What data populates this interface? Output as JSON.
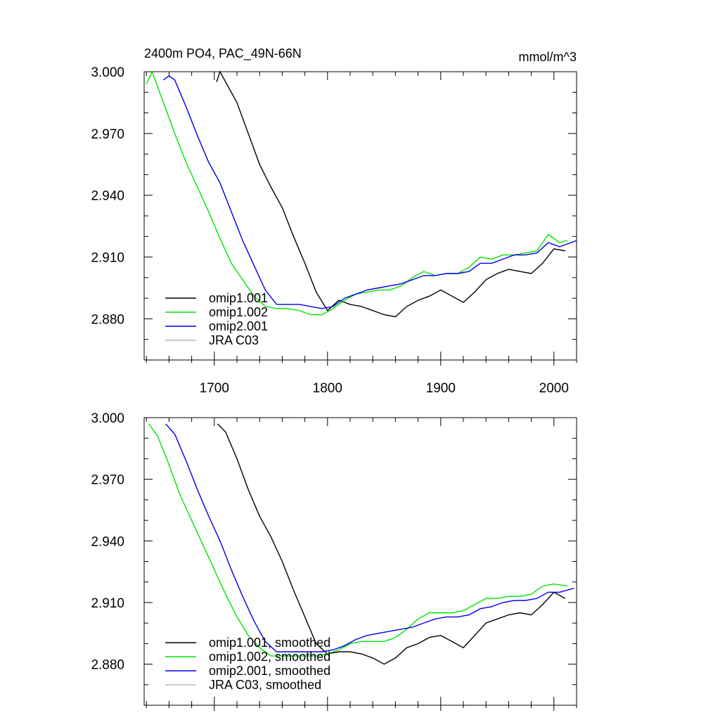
{
  "title": "2400m PO4, PAC_49N-66N",
  "units": "mmol/m^3",
  "chart_data": [
    {
      "type": "line",
      "title": "2400m PO4, PAC_49N-66N",
      "units_label": "mmol/m^3",
      "xlim": [
        1638,
        2020
      ],
      "ylim": [
        2.86,
        3.0
      ],
      "xticks": [
        1700,
        1800,
        1900,
        2000
      ],
      "xtick_labels": [
        "1700",
        "1800",
        "1900",
        "2000"
      ],
      "yticks": [
        2.88,
        2.91,
        2.94,
        2.97,
        3.0
      ],
      "ytick_labels": [
        "2.880",
        "2.910",
        "2.940",
        "2.970",
        "3.000"
      ],
      "grid": false,
      "legend_position": "bottom-left",
      "legend": [
        "omip1.001",
        "omip1.002",
        "omip2.001",
        "JRA C03"
      ],
      "series": [
        {
          "name": "omip1.001",
          "color": "#000000",
          "points": [
            [
              1702,
              2.995
            ],
            [
              1705,
              3.0
            ],
            [
              1710,
              2.995
            ],
            [
              1720,
              2.985
            ],
            [
              1730,
              2.97
            ],
            [
              1740,
              2.955
            ],
            [
              1750,
              2.944
            ],
            [
              1760,
              2.934
            ],
            [
              1770,
              2.92
            ],
            [
              1780,
              2.907
            ],
            [
              1790,
              2.893
            ],
            [
              1800,
              2.884
            ],
            [
              1810,
              2.889
            ],
            [
              1820,
              2.887
            ],
            [
              1830,
              2.886
            ],
            [
              1840,
              2.884
            ],
            [
              1850,
              2.882
            ],
            [
              1860,
              2.881
            ],
            [
              1870,
              2.886
            ],
            [
              1880,
              2.889
            ],
            [
              1890,
              2.891
            ],
            [
              1900,
              2.894
            ],
            [
              1910,
              2.891
            ],
            [
              1920,
              2.888
            ],
            [
              1930,
              2.893
            ],
            [
              1940,
              2.899
            ],
            [
              1950,
              2.902
            ],
            [
              1960,
              2.904
            ],
            [
              1970,
              2.903
            ],
            [
              1980,
              2.902
            ],
            [
              1990,
              2.907
            ],
            [
              2000,
              2.914
            ],
            [
              2010,
              2.913
            ]
          ]
        },
        {
          "name": "omip1.002",
          "color": "#00e400",
          "points": [
            [
              1640,
              2.994
            ],
            [
              1645,
              3.0
            ],
            [
              1655,
              2.985
            ],
            [
              1665,
              2.97
            ],
            [
              1675,
              2.956
            ],
            [
              1685,
              2.944
            ],
            [
              1695,
              2.932
            ],
            [
              1705,
              2.919
            ],
            [
              1715,
              2.907
            ],
            [
              1725,
              2.899
            ],
            [
              1735,
              2.891
            ],
            [
              1745,
              2.886
            ],
            [
              1755,
              2.885
            ],
            [
              1765,
              2.885
            ],
            [
              1775,
              2.884
            ],
            [
              1785,
              2.882
            ],
            [
              1795,
              2.882
            ],
            [
              1805,
              2.885
            ],
            [
              1815,
              2.889
            ],
            [
              1825,
              2.892
            ],
            [
              1835,
              2.893
            ],
            [
              1845,
              2.894
            ],
            [
              1855,
              2.894
            ],
            [
              1865,
              2.896
            ],
            [
              1875,
              2.9
            ],
            [
              1885,
              2.903
            ],
            [
              1895,
              2.901
            ],
            [
              1905,
              2.902
            ],
            [
              1915,
              2.902
            ],
            [
              1925,
              2.905
            ],
            [
              1935,
              2.91
            ],
            [
              1945,
              2.909
            ],
            [
              1955,
              2.911
            ],
            [
              1965,
              2.911
            ],
            [
              1975,
              2.912
            ],
            [
              1985,
              2.913
            ],
            [
              1995,
              2.921
            ],
            [
              2005,
              2.917
            ],
            [
              2012,
              2.918
            ]
          ]
        },
        {
          "name": "omip2.001",
          "color": "#0000e8",
          "points": [
            [
              1655,
              2.996
            ],
            [
              1660,
              2.998
            ],
            [
              1665,
              2.996
            ],
            [
              1675,
              2.983
            ],
            [
              1685,
              2.969
            ],
            [
              1695,
              2.956
            ],
            [
              1705,
              2.946
            ],
            [
              1715,
              2.932
            ],
            [
              1725,
              2.918
            ],
            [
              1735,
              2.906
            ],
            [
              1745,
              2.894
            ],
            [
              1755,
              2.887
            ],
            [
              1765,
              2.887
            ],
            [
              1775,
              2.887
            ],
            [
              1785,
              2.886
            ],
            [
              1795,
              2.885
            ],
            [
              1805,
              2.886
            ],
            [
              1815,
              2.89
            ],
            [
              1825,
              2.892
            ],
            [
              1835,
              2.894
            ],
            [
              1845,
              2.895
            ],
            [
              1855,
              2.896
            ],
            [
              1865,
              2.897
            ],
            [
              1875,
              2.899
            ],
            [
              1885,
              2.901
            ],
            [
              1895,
              2.901
            ],
            [
              1905,
              2.902
            ],
            [
              1915,
              2.902
            ],
            [
              1925,
              2.903
            ],
            [
              1935,
              2.907
            ],
            [
              1945,
              2.907
            ],
            [
              1955,
              2.909
            ],
            [
              1965,
              2.911
            ],
            [
              1975,
              2.911
            ],
            [
              1985,
              2.912
            ],
            [
              1995,
              2.917
            ],
            [
              2005,
              2.915
            ],
            [
              2015,
              2.917
            ],
            [
              2020,
              2.918
            ]
          ]
        },
        {
          "name": "JRA C03",
          "color": "#b8b8b8",
          "points": []
        }
      ]
    },
    {
      "type": "line",
      "xlim": [
        1638,
        2020
      ],
      "ylim": [
        2.86,
        3.0
      ],
      "xticks": [
        1700,
        1800,
        1900,
        2000
      ],
      "yticks": [
        2.88,
        2.91,
        2.94,
        2.97,
        3.0
      ],
      "ytick_labels": [
        "2.880",
        "2.910",
        "2.940",
        "2.970",
        "3.000"
      ],
      "grid": false,
      "legend_position": "bottom-left",
      "legend": [
        "omip1.001, smoothed",
        "omip1.002, smoothed",
        "omip2.001, smoothed",
        "JRA C03, smoothed"
      ],
      "series": [
        {
          "name": "omip1.001, smoothed",
          "color": "#000000",
          "points": [
            [
              1703,
              2.997
            ],
            [
              1710,
              2.993
            ],
            [
              1720,
              2.98
            ],
            [
              1730,
              2.965
            ],
            [
              1740,
              2.952
            ],
            [
              1750,
              2.942
            ],
            [
              1760,
              2.93
            ],
            [
              1770,
              2.916
            ],
            [
              1780,
              2.903
            ],
            [
              1790,
              2.89
            ],
            [
              1800,
              2.885
            ],
            [
              1810,
              2.886
            ],
            [
              1820,
              2.886
            ],
            [
              1830,
              2.885
            ],
            [
              1840,
              2.883
            ],
            [
              1850,
              2.88
            ],
            [
              1860,
              2.883
            ],
            [
              1870,
              2.888
            ],
            [
              1880,
              2.89
            ],
            [
              1890,
              2.893
            ],
            [
              1900,
              2.894
            ],
            [
              1910,
              2.891
            ],
            [
              1920,
              2.888
            ],
            [
              1930,
              2.894
            ],
            [
              1940,
              2.9
            ],
            [
              1950,
              2.902
            ],
            [
              1960,
              2.904
            ],
            [
              1970,
              2.905
            ],
            [
              1980,
              2.904
            ],
            [
              1990,
              2.909
            ],
            [
              2000,
              2.915
            ],
            [
              2010,
              2.912
            ]
          ]
        },
        {
          "name": "omip1.002, smoothed",
          "color": "#00e400",
          "points": [
            [
              1642,
              2.997
            ],
            [
              1650,
              2.991
            ],
            [
              1660,
              2.977
            ],
            [
              1670,
              2.962
            ],
            [
              1680,
              2.95
            ],
            [
              1690,
              2.938
            ],
            [
              1700,
              2.926
            ],
            [
              1710,
              2.914
            ],
            [
              1720,
              2.903
            ],
            [
              1730,
              2.894
            ],
            [
              1740,
              2.888
            ],
            [
              1750,
              2.884
            ],
            [
              1760,
              2.884
            ],
            [
              1770,
              2.884
            ],
            [
              1780,
              2.884
            ],
            [
              1790,
              2.884
            ],
            [
              1800,
              2.885
            ],
            [
              1810,
              2.887
            ],
            [
              1820,
              2.89
            ],
            [
              1830,
              2.891
            ],
            [
              1840,
              2.891
            ],
            [
              1850,
              2.891
            ],
            [
              1860,
              2.893
            ],
            [
              1870,
              2.897
            ],
            [
              1880,
              2.902
            ],
            [
              1890,
              2.905
            ],
            [
              1900,
              2.905
            ],
            [
              1910,
              2.905
            ],
            [
              1920,
              2.906
            ],
            [
              1930,
              2.909
            ],
            [
              1940,
              2.912
            ],
            [
              1950,
              2.912
            ],
            [
              1960,
              2.913
            ],
            [
              1970,
              2.913
            ],
            [
              1980,
              2.914
            ],
            [
              1990,
              2.918
            ],
            [
              2000,
              2.919
            ],
            [
              2012,
              2.918
            ]
          ]
        },
        {
          "name": "omip2.001, smoothed",
          "color": "#0000e8",
          "points": [
            [
              1657,
              2.997
            ],
            [
              1665,
              2.992
            ],
            [
              1675,
              2.979
            ],
            [
              1685,
              2.965
            ],
            [
              1695,
              2.952
            ],
            [
              1705,
              2.94
            ],
            [
              1715,
              2.926
            ],
            [
              1725,
              2.913
            ],
            [
              1735,
              2.901
            ],
            [
              1745,
              2.891
            ],
            [
              1755,
              2.886
            ],
            [
              1765,
              2.886
            ],
            [
              1775,
              2.886
            ],
            [
              1785,
              2.886
            ],
            [
              1795,
              2.886
            ],
            [
              1805,
              2.887
            ],
            [
              1815,
              2.889
            ],
            [
              1825,
              2.892
            ],
            [
              1835,
              2.894
            ],
            [
              1845,
              2.895
            ],
            [
              1855,
              2.896
            ],
            [
              1865,
              2.897
            ],
            [
              1875,
              2.898
            ],
            [
              1885,
              2.9
            ],
            [
              1895,
              2.902
            ],
            [
              1905,
              2.903
            ],
            [
              1915,
              2.903
            ],
            [
              1925,
              2.904
            ],
            [
              1935,
              2.907
            ],
            [
              1945,
              2.908
            ],
            [
              1955,
              2.91
            ],
            [
              1965,
              2.911
            ],
            [
              1975,
              2.911
            ],
            [
              1985,
              2.912
            ],
            [
              1995,
              2.915
            ],
            [
              2005,
              2.915
            ],
            [
              2018,
              2.917
            ]
          ]
        },
        {
          "name": "JRA C03, smoothed",
          "color": "#b8b8b8",
          "points": []
        }
      ]
    }
  ]
}
